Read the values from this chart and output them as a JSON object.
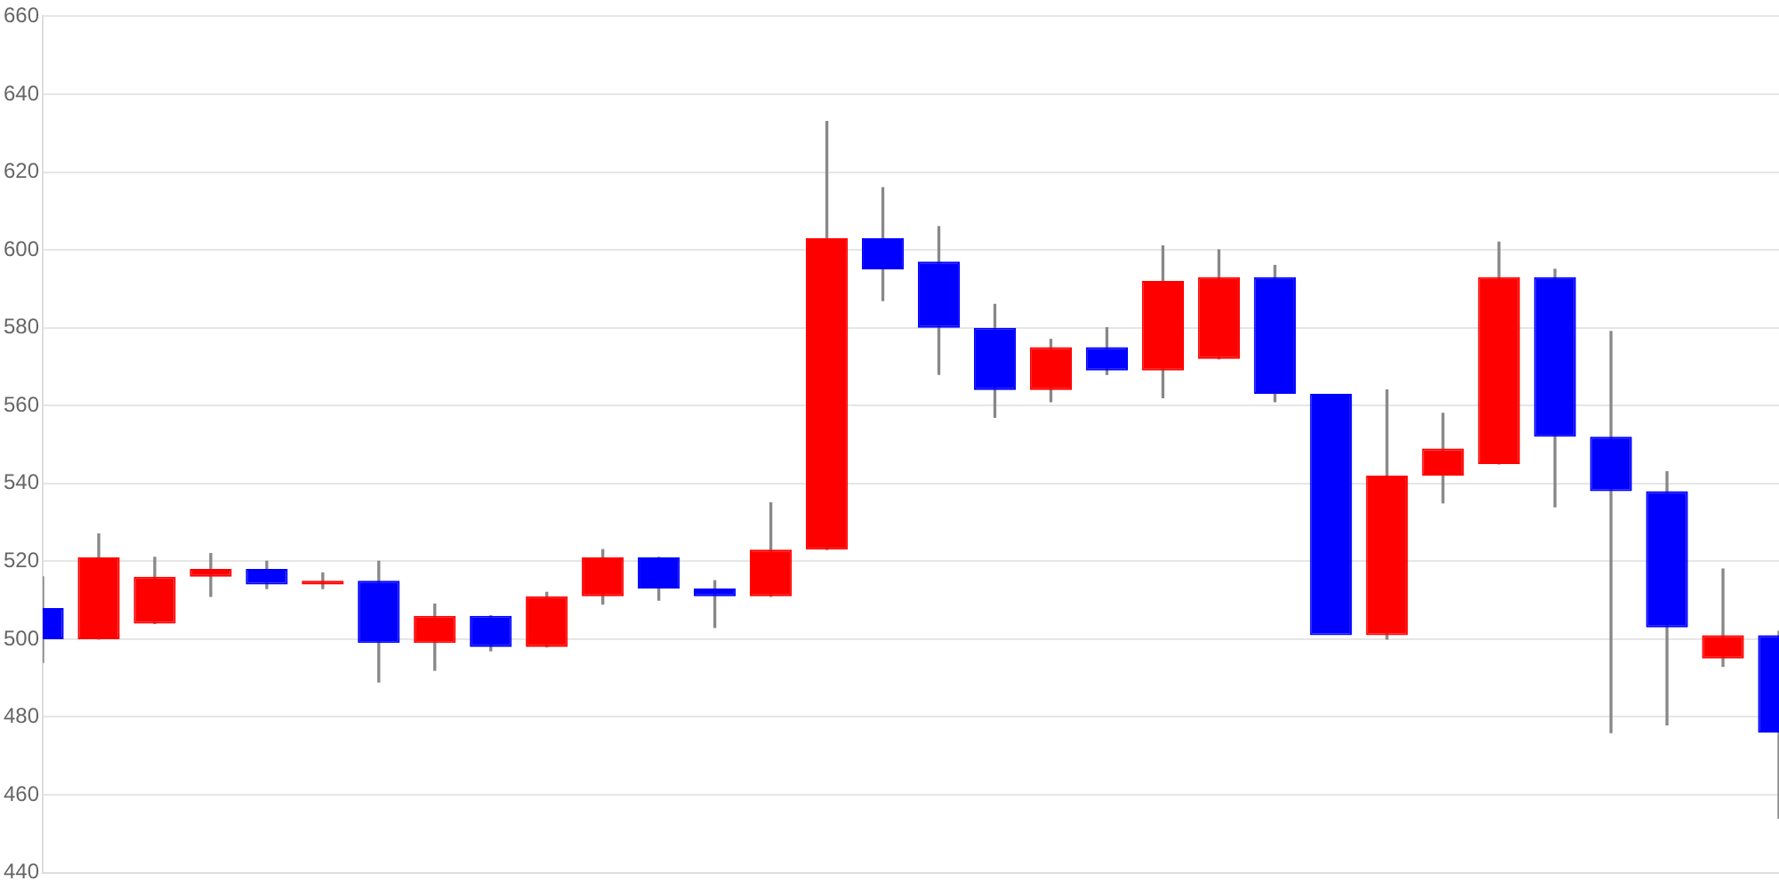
{
  "chart_data": {
    "type": "candlestick",
    "categories": [
      null,
      null,
      null,
      null,
      null,
      null,
      null,
      null,
      null,
      null,
      null,
      null,
      null,
      null,
      null,
      null,
      null,
      null,
      null,
      null,
      null,
      null,
      null,
      null,
      null,
      null,
      null,
      null,
      null,
      null,
      null,
      null
    ],
    "ohlc": [
      [
        508,
        516,
        494,
        500
      ],
      [
        500,
        527,
        500,
        521
      ],
      [
        504,
        521,
        504,
        516
      ],
      [
        516,
        522,
        511,
        518
      ],
      [
        518,
        520,
        513,
        514
      ],
      [
        514,
        517,
        513,
        515
      ],
      [
        515,
        520,
        489,
        499
      ],
      [
        499,
        509,
        492,
        506
      ],
      [
        506,
        506,
        497,
        498
      ],
      [
        498,
        512,
        498,
        511
      ],
      [
        511,
        523,
        509,
        521
      ],
      [
        521,
        521,
        510,
        513
      ],
      [
        513,
        515,
        503,
        511
      ],
      [
        511,
        535,
        511,
        523
      ],
      [
        523,
        633,
        523,
        603
      ],
      [
        603,
        616,
        587,
        595
      ],
      [
        597,
        606,
        568,
        580
      ],
      [
        580,
        586,
        557,
        564
      ],
      [
        564,
        577,
        561,
        575
      ],
      [
        575,
        580,
        568,
        569
      ],
      [
        569,
        601,
        562,
        592
      ],
      [
        572,
        600,
        572,
        593
      ],
      [
        593,
        596,
        561,
        563
      ],
      [
        563,
        563,
        501,
        501
      ],
      [
        501,
        564,
        500,
        542
      ],
      [
        542,
        558,
        535,
        549
      ],
      [
        545,
        602,
        545,
        593
      ],
      [
        593,
        595,
        534,
        552
      ],
      [
        552,
        579,
        476,
        538
      ],
      [
        538,
        543,
        478,
        503
      ],
      [
        495,
        518,
        493,
        501
      ],
      [
        501,
        502,
        454,
        476
      ]
    ],
    "colors": [
      "#0000ff",
      "#ff0000",
      "#ff0000",
      "#ff0000",
      "#0000ff",
      "#ff0000",
      "#0000ff",
      "#ff0000",
      "#0000ff",
      "#ff0000",
      "#ff0000",
      "#0000ff",
      "#0000ff",
      "#ff0000",
      "#ff0000",
      "#0000ff",
      "#0000ff",
      "#0000ff",
      "#ff0000",
      "#0000ff",
      "#ff0000",
      "#ff0000",
      "#0000ff",
      "#0000ff",
      "#ff0000",
      "#ff0000",
      "#ff0000",
      "#0000ff",
      "#0000ff",
      "#0000ff",
      "#ff0000",
      "#0000ff"
    ],
    "ylim": [
      440,
      660
    ],
    "yticks": [
      440,
      460,
      480,
      500,
      520,
      540,
      560,
      580,
      600,
      620,
      640,
      660
    ],
    "grid": "y",
    "tick_labels": "y"
  }
}
